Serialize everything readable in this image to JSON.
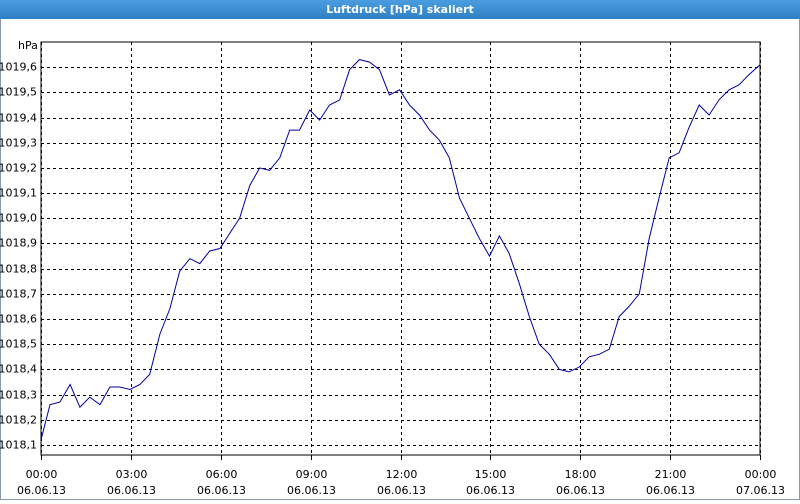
{
  "chart_data": {
    "type": "line",
    "title": "Luftdruck [hPa] skaliert",
    "y_label": "hPa",
    "grid": true,
    "xlim": [
      0,
      24
    ],
    "ylim": [
      1018.06,
      1019.7
    ],
    "xticks": [
      {
        "value": 0,
        "label": "00:00",
        "date": "06.06.13"
      },
      {
        "value": 3,
        "label": "03:00",
        "date": "06.06.13"
      },
      {
        "value": 6,
        "label": "06:00",
        "date": "06.06.13"
      },
      {
        "value": 9,
        "label": "09:00",
        "date": "06.06.13"
      },
      {
        "value": 12,
        "label": "12:00",
        "date": "06.06.13"
      },
      {
        "value": 15,
        "label": "15:00",
        "date": "06.06.13"
      },
      {
        "value": 18,
        "label": "18:00",
        "date": "06.06.13"
      },
      {
        "value": 21,
        "label": "21:00",
        "date": "06.06.13"
      },
      {
        "value": 24,
        "label": "00:00",
        "date": "07.06.13"
      }
    ],
    "yticks": [
      {
        "value": 1018.1,
        "label": "1018,1"
      },
      {
        "value": 1018.2,
        "label": "1018,2"
      },
      {
        "value": 1018.3,
        "label": "1018,3"
      },
      {
        "value": 1018.4,
        "label": "1018,4"
      },
      {
        "value": 1018.5,
        "label": "1018,5"
      },
      {
        "value": 1018.6,
        "label": "1018,6"
      },
      {
        "value": 1018.7,
        "label": "1018,7"
      },
      {
        "value": 1018.8,
        "label": "1018,8"
      },
      {
        "value": 1018.9,
        "label": "1018,9"
      },
      {
        "value": 1019.0,
        "label": "1019,0"
      },
      {
        "value": 1019.1,
        "label": "1019,1"
      },
      {
        "value": 1019.2,
        "label": "1019,2"
      },
      {
        "value": 1019.3,
        "label": "1019,3"
      },
      {
        "value": 1019.4,
        "label": "1019,4"
      },
      {
        "value": 1019.5,
        "label": "1019,5"
      },
      {
        "value": 1019.6,
        "label": "1019,6"
      }
    ],
    "x": [
      0,
      0.3,
      0.63,
      0.97,
      1.3,
      1.63,
      1.97,
      2.3,
      2.63,
      2.97,
      3.3,
      3.63,
      3.97,
      4.3,
      4.63,
      4.97,
      5.3,
      5.63,
      5.97,
      6.3,
      6.63,
      6.97,
      7.3,
      7.63,
      7.97,
      8.3,
      8.63,
      8.97,
      9.3,
      9.63,
      9.97,
      10.3,
      10.63,
      10.97,
      11.3,
      11.63,
      11.97,
      12.3,
      12.63,
      12.97,
      13.3,
      13.63,
      13.97,
      14.3,
      14.63,
      14.97,
      15.3,
      15.63,
      15.97,
      16.3,
      16.63,
      16.97,
      17.3,
      17.63,
      17.97,
      18.3,
      18.63,
      18.97,
      19.3,
      19.63,
      19.97,
      20.3,
      20.63,
      20.97,
      21.3,
      21.63,
      21.97,
      22.3,
      22.63,
      22.97,
      23.3,
      23.63,
      24
    ],
    "series": [
      {
        "color": "#0000a0",
        "values": [
          1018.12,
          1018.26,
          1018.27,
          1018.34,
          1018.25,
          1018.29,
          1018.26,
          1018.33,
          1018.33,
          1018.32,
          1018.34,
          1018.38,
          1018.54,
          1018.64,
          1018.79,
          1018.84,
          1018.82,
          1018.87,
          1018.88,
          1018.94,
          1019.0,
          1019.13,
          1019.2,
          1019.19,
          1019.24,
          1019.35,
          1019.35,
          1019.43,
          1019.39,
          1019.45,
          1019.47,
          1019.59,
          1019.63,
          1019.62,
          1019.59,
          1019.49,
          1019.51,
          1019.45,
          1019.41,
          1019.35,
          1019.31,
          1019.24,
          1019.08,
          1019.0,
          1018.92,
          1018.85,
          1018.93,
          1018.86,
          1018.74,
          1018.61,
          1018.5,
          1018.46,
          1018.4,
          1018.39,
          1018.41,
          1018.45,
          1018.46,
          1018.48,
          1018.61,
          1018.65,
          1018.7,
          1018.92,
          1019.08,
          1019.24,
          1019.26,
          1019.36,
          1019.45,
          1019.41,
          1019.47,
          1019.51,
          1019.53,
          1019.57,
          1019.61
        ]
      }
    ]
  }
}
